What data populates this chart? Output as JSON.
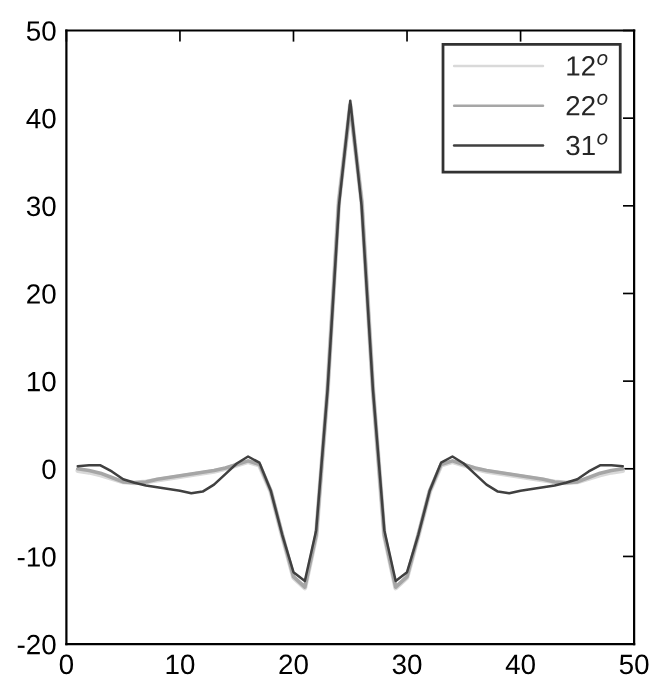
{
  "chart_data": {
    "type": "line",
    "x": [
      1,
      2,
      3,
      4,
      5,
      6,
      7,
      8,
      9,
      10,
      11,
      12,
      13,
      14,
      15,
      16,
      17,
      18,
      19,
      20,
      21,
      22,
      23,
      24,
      25,
      26,
      27,
      28,
      29,
      30,
      31,
      32,
      33,
      34,
      35,
      36,
      37,
      38,
      39,
      40,
      41,
      42,
      43,
      44,
      45,
      46,
      47,
      48,
      49
    ],
    "series": [
      {
        "name": "12$^{o}$",
        "color": "#d9d9d9",
        "values": [
          -0.2,
          -0.4,
          -0.7,
          -1.1,
          -1.5,
          -1.6,
          -1.5,
          -1.3,
          -1.1,
          -0.9,
          -0.7,
          -0.5,
          -0.3,
          0,
          0.4,
          0.8,
          0.4,
          -2.6,
          -7.6,
          -12.4,
          -13.6,
          -7.6,
          9,
          30.5,
          41.5,
          30.5,
          9,
          -7.6,
          -13.6,
          -12.4,
          -7.6,
          -2.6,
          0.4,
          0.8,
          0.4,
          0,
          -0.3,
          -0.5,
          -0.7,
          -0.9,
          -1.1,
          -1.3,
          -1.5,
          -1.6,
          -1.5,
          -1.1,
          -0.7,
          -0.4,
          -0.2
        ]
      },
      {
        "name": "22$^{o}$",
        "color": "#a6a6a6",
        "values": [
          0,
          -0.2,
          -0.5,
          -1,
          -1.5,
          -1.6,
          -1.5,
          -1.2,
          -1,
          -0.8,
          -0.6,
          -0.4,
          -0.2,
          0.1,
          0.5,
          0.9,
          0.5,
          -2.5,
          -7.5,
          -12.3,
          -13.5,
          -7.5,
          9,
          30.5,
          41.5,
          30.5,
          9,
          -7.5,
          -13.5,
          -12.3,
          -7.5,
          -2.5,
          0.5,
          0.9,
          0.5,
          0.1,
          -0.2,
          -0.4,
          -0.6,
          -0.8,
          -1,
          -1.2,
          -1.5,
          -1.6,
          -1.5,
          -1,
          -0.5,
          -0.2,
          0
        ]
      },
      {
        "name": "31$^{o}$",
        "color": "#404040",
        "values": [
          0.3,
          0.4,
          0.4,
          -0.3,
          -1.2,
          -1.6,
          -1.9,
          -2.1,
          -2.3,
          -2.5,
          -2.8,
          -2.6,
          -1.8,
          -0.6,
          0.6,
          1.4,
          0.7,
          -2.5,
          -7.5,
          -11.8,
          -12.8,
          -7,
          9,
          30,
          42,
          30,
          9,
          -7,
          -12.8,
          -11.8,
          -7.5,
          -2.5,
          0.7,
          1.4,
          0.6,
          -0.6,
          -1.8,
          -2.6,
          -2.8,
          -2.5,
          -2.3,
          -2.1,
          -1.9,
          -1.6,
          -1.2,
          -0.3,
          0.4,
          0.4,
          0.3
        ]
      }
    ],
    "xlim": [
      0,
      50
    ],
    "xticks": [
      0,
      10,
      20,
      30,
      40,
      50
    ],
    "ylim": [
      -20,
      50
    ],
    "yticks": [
      -20,
      -10,
      0,
      10,
      20,
      30,
      40,
      50
    ],
    "legend": "top right"
  }
}
